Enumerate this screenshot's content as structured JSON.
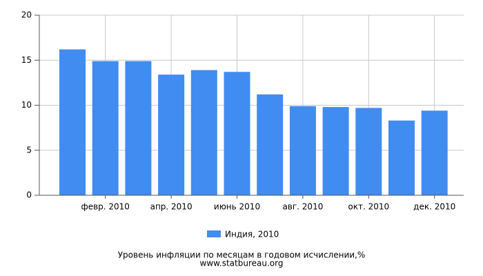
{
  "chart_data": {
    "type": "bar",
    "categories": [
      null,
      "февр. 2010",
      null,
      "апр. 2010",
      null,
      "июнь 2010",
      null,
      "авг. 2010",
      null,
      "окт. 2010",
      null,
      "дек. 2010"
    ],
    "series": [
      {
        "name": "Индия, 2010",
        "color": "#418cf0",
        "values": [
          16.2,
          14.9,
          14.9,
          13.4,
          13.9,
          13.7,
          11.2,
          9.9,
          9.8,
          9.7,
          8.3,
          9.4
        ]
      }
    ],
    "ylim": [
      0,
      20
    ],
    "yticks": [
      0,
      5,
      10,
      15,
      20
    ],
    "grid": true,
    "title": "Уровень инфляции по месяцам в годовом исчислении,%",
    "subtitle": "www.statbureau.org"
  }
}
